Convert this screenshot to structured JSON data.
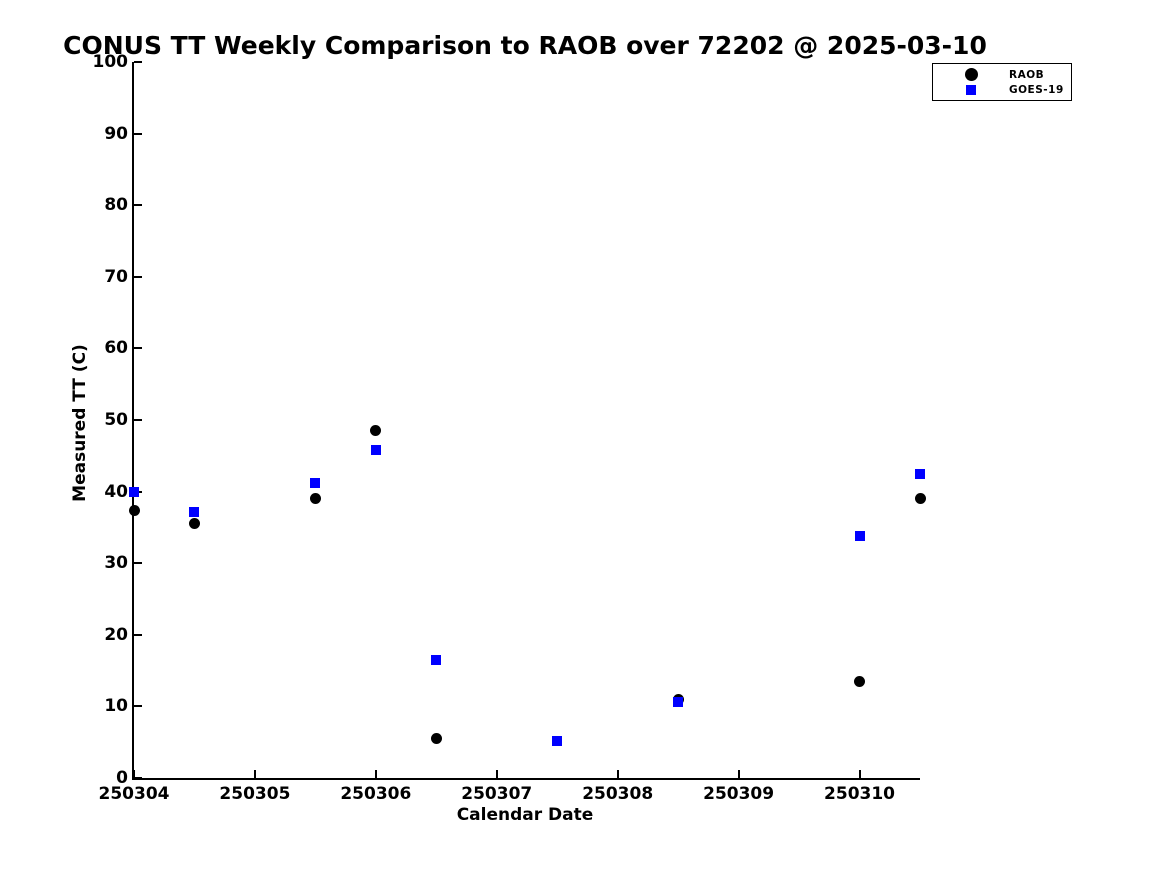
{
  "figure": {
    "background": "#ffffff",
    "text_color": "#000000"
  },
  "chart_data": {
    "type": "scatter",
    "title": "CONUS TT Weekly Comparison to RAOB over 72202 @ 2025-03-10",
    "xlabel": "Calendar Date",
    "ylabel": "Measured TT (C)",
    "x_range": [
      250304,
      250310.5
    ],
    "y_range": [
      0,
      100
    ],
    "x_ticks": [
      250304,
      250305,
      250306,
      250307,
      250308,
      250309,
      250310
    ],
    "y_ticks": [
      0,
      10,
      20,
      30,
      40,
      50,
      60,
      70,
      80,
      90,
      100
    ],
    "grid": false,
    "legend_position": "top-right-outside",
    "axis_color": "#000000",
    "series": [
      {
        "name": "RAOB",
        "marker": "circle",
        "color": "#000000",
        "points": [
          {
            "x": 250304.0,
            "y": 37.3
          },
          {
            "x": 250304.5,
            "y": 35.6
          },
          {
            "x": 250305.5,
            "y": 39.0
          },
          {
            "x": 250306.0,
            "y": 48.5
          },
          {
            "x": 250306.5,
            "y": 5.5
          },
          {
            "x": 250308.5,
            "y": 11.0
          },
          {
            "x": 250310.0,
            "y": 13.5
          },
          {
            "x": 250310.5,
            "y": 39.1
          }
        ]
      },
      {
        "name": "GOES-19",
        "marker": "square",
        "color": "#0000ff",
        "points": [
          {
            "x": 250304.0,
            "y": 39.9
          },
          {
            "x": 250304.5,
            "y": 37.1
          },
          {
            "x": 250305.5,
            "y": 41.2
          },
          {
            "x": 250306.0,
            "y": 45.8
          },
          {
            "x": 250306.5,
            "y": 16.5
          },
          {
            "x": 250307.5,
            "y": 5.2
          },
          {
            "x": 250308.5,
            "y": 10.6
          },
          {
            "x": 250310.0,
            "y": 33.8
          },
          {
            "x": 250310.5,
            "y": 42.4
          }
        ]
      }
    ]
  }
}
